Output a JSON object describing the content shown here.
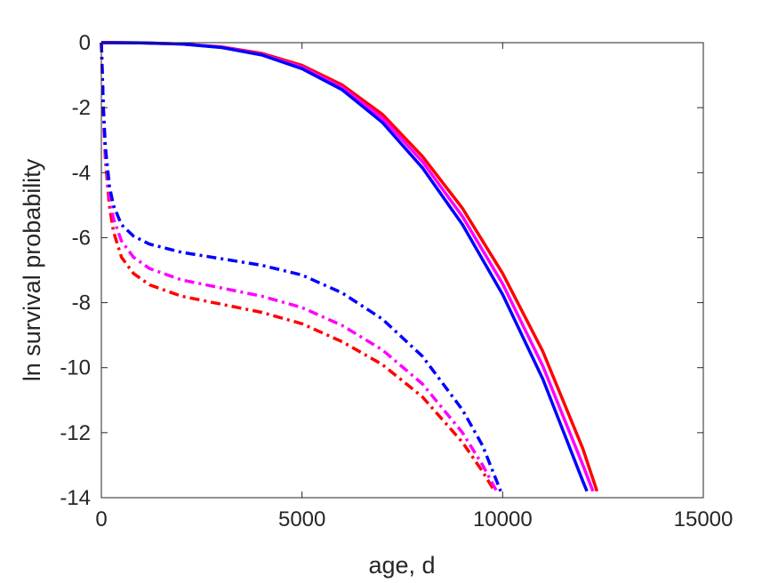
{
  "chart_data": {
    "type": "line",
    "title": "",
    "xlabel": "age, d",
    "ylabel": "ln survival probability",
    "xlim": [
      0,
      15000
    ],
    "ylim": [
      -14,
      0
    ],
    "xticks": [
      0,
      5000,
      10000,
      15000
    ],
    "yticks": [
      0,
      -2,
      -4,
      -6,
      -8,
      -10,
      -12,
      -14
    ],
    "xtick_labels": [
      "0",
      "5000",
      "10000",
      "15000"
    ],
    "ytick_labels": [
      "0",
      "-2",
      "-4",
      "-6",
      "-8",
      "-10",
      "-12",
      "-14"
    ],
    "grid": false,
    "legend": false,
    "series": [
      {
        "color": "#ff0000",
        "style": "solid",
        "x": [
          0,
          1000,
          2000,
          3000,
          4000,
          5000,
          6000,
          7000,
          8000,
          9000,
          10000,
          11000,
          12000,
          12350
        ],
        "y": [
          0,
          -0.005,
          -0.04,
          -0.13,
          -0.33,
          -0.7,
          -1.3,
          -2.2,
          -3.5,
          -5.1,
          -7.1,
          -9.5,
          -12.5,
          -13.8
        ]
      },
      {
        "color": "#ff00ff",
        "style": "solid",
        "x": [
          0,
          1000,
          2000,
          3000,
          4000,
          5000,
          6000,
          7000,
          8000,
          9000,
          10000,
          11000,
          12000,
          12250
        ],
        "y": [
          0,
          -0.005,
          -0.04,
          -0.14,
          -0.36,
          -0.75,
          -1.38,
          -2.32,
          -3.66,
          -5.35,
          -7.42,
          -9.95,
          -13.0,
          -13.8
        ]
      },
      {
        "color": "#0000ff",
        "style": "solid",
        "x": [
          0,
          1000,
          2000,
          3000,
          4000,
          5000,
          6000,
          7000,
          8000,
          9000,
          10000,
          11000,
          12000,
          12100
        ],
        "y": [
          0,
          -0.005,
          -0.04,
          -0.15,
          -0.38,
          -0.8,
          -1.45,
          -2.45,
          -3.85,
          -5.6,
          -7.75,
          -10.35,
          -13.5,
          -13.8
        ]
      },
      {
        "color": "#ff0000",
        "style": "dashdot",
        "x": [
          0,
          50,
          100,
          200,
          300,
          500,
          800,
          1200,
          2000,
          3000,
          4000,
          5000,
          6000,
          7000,
          8000,
          9000,
          9500,
          9800
        ],
        "y": [
          0,
          -2.2,
          -3.6,
          -5.0,
          -5.8,
          -6.6,
          -7.1,
          -7.45,
          -7.8,
          -8.05,
          -8.3,
          -8.65,
          -9.2,
          -9.9,
          -10.9,
          -12.3,
          -13.2,
          -13.8
        ]
      },
      {
        "color": "#ff00ff",
        "style": "dashdot",
        "x": [
          0,
          50,
          100,
          200,
          300,
          500,
          800,
          1200,
          2000,
          3000,
          4000,
          5000,
          6000,
          7000,
          8000,
          9000,
          9500,
          9850
        ],
        "y": [
          0,
          -2.1,
          -3.4,
          -4.7,
          -5.4,
          -6.1,
          -6.6,
          -6.95,
          -7.3,
          -7.55,
          -7.8,
          -8.15,
          -8.7,
          -9.45,
          -10.5,
          -12.0,
          -13.0,
          -13.8
        ]
      },
      {
        "color": "#0000ff",
        "style": "dashdot",
        "x": [
          0,
          50,
          100,
          200,
          300,
          500,
          800,
          1200,
          2000,
          3000,
          4000,
          5000,
          6000,
          7000,
          8000,
          9000,
          9500,
          9950
        ],
        "y": [
          0,
          -2.0,
          -3.2,
          -4.4,
          -5.0,
          -5.6,
          -5.95,
          -6.2,
          -6.45,
          -6.65,
          -6.85,
          -7.15,
          -7.7,
          -8.5,
          -9.65,
          -11.3,
          -12.4,
          -13.8
        ]
      }
    ]
  }
}
